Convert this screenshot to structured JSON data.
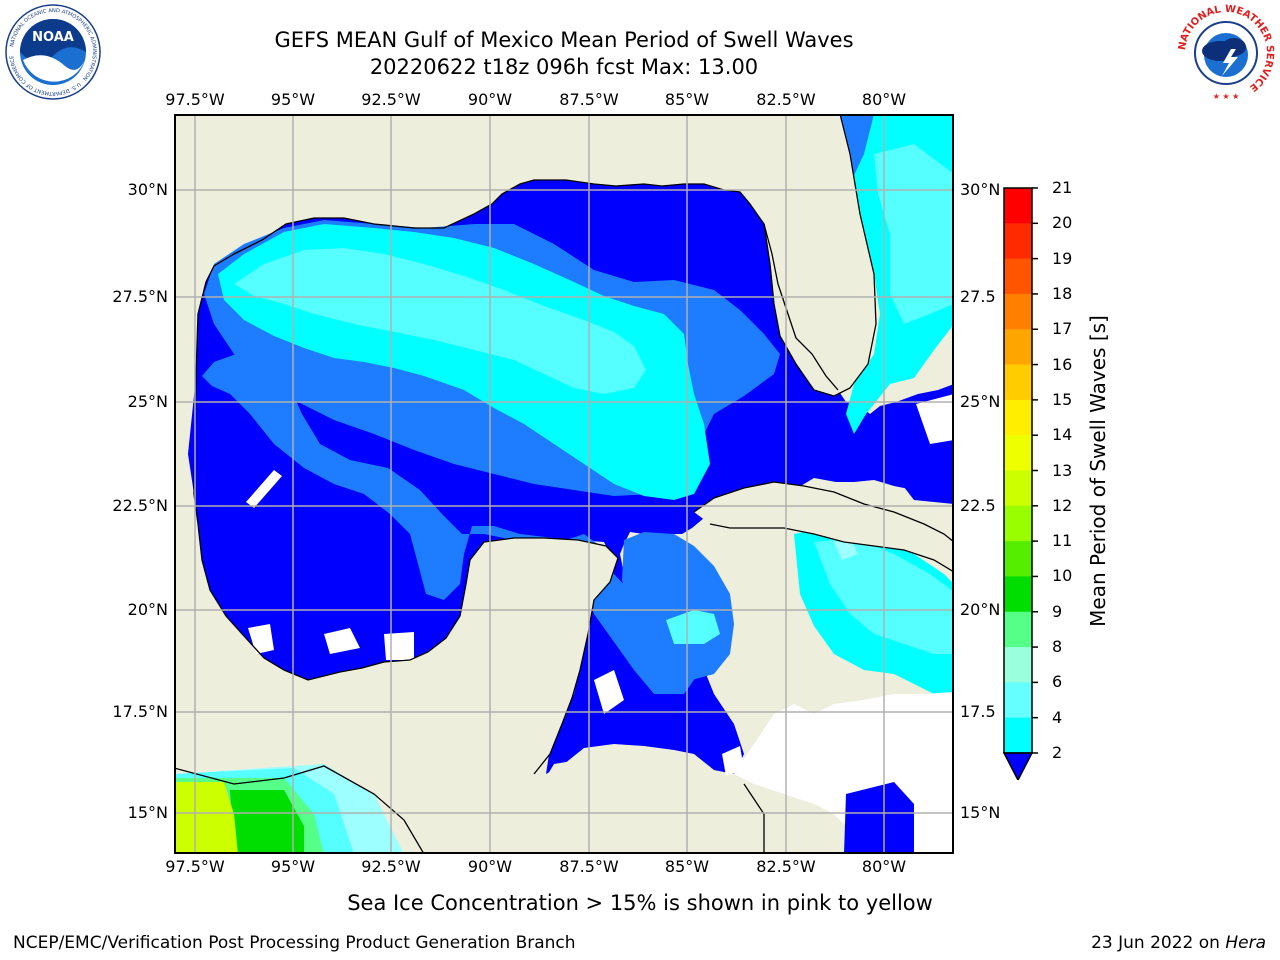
{
  "title_line1": "GEFS MEAN Gulf of Mexico Mean Period of Swell Waves",
  "title_line2": "20220622 t18z 096h fcst   Max: 13.00",
  "lon_labels": [
    "97.5°W",
    "95°W",
    "92.5°W",
    "90°W",
    "87.5°W",
    "85°W",
    "82.5°W",
    "80°W"
  ],
  "lat_labels": [
    "30°N",
    "27.5°N",
    "25°N",
    "22.5°N",
    "20°N",
    "17.5°N",
    "15°N"
  ],
  "lat_labels_right": [
    "30°N",
    "27.5",
    "25°N",
    "22.5",
    "20°N",
    "17.5",
    "15°N"
  ],
  "colorbar": {
    "title": "Mean Period of Swell Waves [s]",
    "ticks": [
      "21",
      "20",
      "19",
      "18",
      "17",
      "16",
      "15",
      "14",
      "13",
      "12",
      "11",
      "10",
      "9",
      "8",
      "6",
      "4",
      "2"
    ],
    "colors": [
      "#ff0000",
      "#ff2a00",
      "#ff5500",
      "#ff7f00",
      "#ffa500",
      "#ffcc00",
      "#ffee00",
      "#eeff00",
      "#ccff00",
      "#99ff00",
      "#55ee00",
      "#00dd00",
      "#55ff88",
      "#99ffdd",
      "#66ffff",
      "#00ffff",
      "#0077ff"
    ],
    "under_color": "#0000ff"
  },
  "colors": {
    "land": "#eeeedc",
    "ocean_missing": "#ffffff",
    "grid": "#b0b0b0",
    "deep_blue": "#0000ff",
    "mid_blue": "#1e7dff",
    "light_blue": "#3dbcff",
    "cyan": "#00ffff",
    "light_cyan": "#55ffff",
    "pale": "#9dffff",
    "green": "#00dd00",
    "yellow_green": "#ccff00"
  },
  "note": "Sea Ice Concentration > 15% is shown in pink to yellow",
  "footer_left": "NCEP/EMC/Verification Post Processing Product Generation Branch",
  "footer_right_date": "23 Jun 2022 on",
  "footer_right_host": "Hera",
  "logos": {
    "noaa_text": "NOAA",
    "noaa_ring": "NATIONAL OCEANIC AND ATMOSPHERIC ADMINISTRATION · U.S. DEPARTMENT OF COMMERCE",
    "nws_ring": "NATIONAL WEATHER SERVICE"
  }
}
